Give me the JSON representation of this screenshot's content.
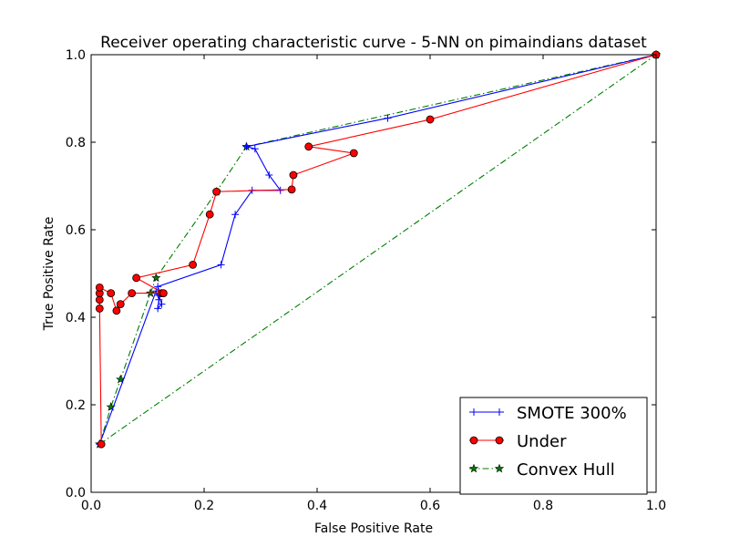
{
  "chart_data": {
    "type": "line",
    "title": "Receiver operating characteristic curve - 5-NN on pimaindians dataset",
    "xlabel": "False Positive Rate",
    "ylabel": "True Positive Rate",
    "xlim": [
      0,
      1
    ],
    "ylim": [
      0,
      1
    ],
    "xticks": [
      "0.0",
      "0.2",
      "0.4",
      "0.6",
      "0.8",
      "1.0"
    ],
    "yticks": [
      "0.0",
      "0.2",
      "0.4",
      "0.6",
      "0.8",
      "1.0"
    ],
    "grid": false,
    "legend_position": "lower-right",
    "series": [
      {
        "name": "SMOTE 300%",
        "color": "#0000ff",
        "marker": "plus",
        "linestyle": "solid",
        "points": [
          [
            0.015,
            0.11
          ],
          [
            0.115,
            0.46
          ],
          [
            0.12,
            0.44
          ],
          [
            0.118,
            0.42
          ],
          [
            0.125,
            0.43
          ],
          [
            0.12,
            0.45
          ],
          [
            0.122,
            0.455
          ],
          [
            0.118,
            0.47
          ],
          [
            0.23,
            0.52
          ],
          [
            0.255,
            0.635
          ],
          [
            0.285,
            0.69
          ],
          [
            0.335,
            0.69
          ],
          [
            0.315,
            0.725
          ],
          [
            0.29,
            0.785
          ],
          [
            0.275,
            0.79
          ],
          [
            0.525,
            0.855
          ],
          [
            1.0,
            1.0
          ]
        ]
      },
      {
        "name": "Under",
        "color": "#ff0000",
        "marker": "circle",
        "linestyle": "solid",
        "points": [
          [
            0.018,
            0.11
          ],
          [
            0.015,
            0.42
          ],
          [
            0.015,
            0.44
          ],
          [
            0.015,
            0.455
          ],
          [
            0.015,
            0.468
          ],
          [
            0.035,
            0.455
          ],
          [
            0.045,
            0.415
          ],
          [
            0.052,
            0.43
          ],
          [
            0.072,
            0.455
          ],
          [
            0.125,
            0.455
          ],
          [
            0.128,
            0.455
          ],
          [
            0.08,
            0.49
          ],
          [
            0.18,
            0.52
          ],
          [
            0.21,
            0.635
          ],
          [
            0.222,
            0.687
          ],
          [
            0.355,
            0.692
          ],
          [
            0.358,
            0.725
          ],
          [
            0.465,
            0.775
          ],
          [
            0.385,
            0.79
          ],
          [
            0.6,
            0.852
          ],
          [
            1.0,
            1.0
          ]
        ]
      },
      {
        "name": "Convex Hull",
        "color": "#007f00",
        "marker": "star",
        "linestyle": "dash-dot",
        "points": [
          [
            0.015,
            0.11
          ],
          [
            0.035,
            0.195
          ],
          [
            0.052,
            0.258
          ],
          [
            0.105,
            0.455
          ],
          [
            0.115,
            0.49
          ],
          [
            0.222,
            0.687
          ],
          [
            0.275,
            0.79
          ],
          [
            1.0,
            1.0
          ],
          [
            0.015,
            0.11
          ]
        ]
      }
    ]
  }
}
